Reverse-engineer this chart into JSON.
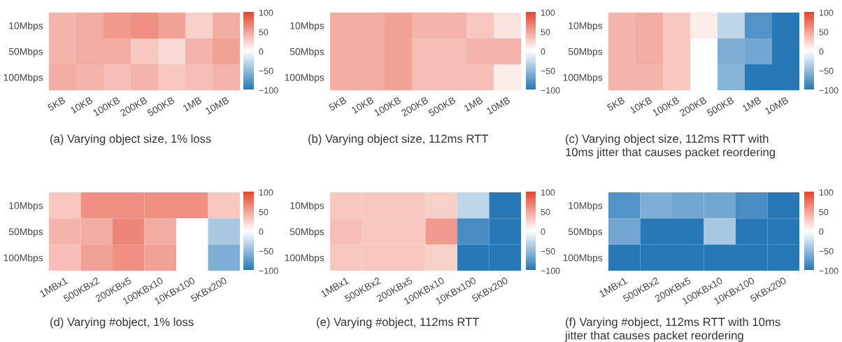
{
  "chart_data": [
    {
      "type": "heatmap",
      "title": "(a) Varying object size, 1% loss",
      "categories": [
        "5KB",
        "10KB",
        "100KB",
        "200KB",
        "500KB",
        "1MB",
        "10MB"
      ],
      "y_categories": [
        "10Mbps",
        "50Mbps",
        "100Mbps"
      ],
      "cells": [
        [
          40,
          45,
          55,
          60,
          50,
          25,
          45
        ],
        [
          40,
          45,
          45,
          30,
          20,
          40,
          50
        ],
        [
          45,
          40,
          35,
          40,
          30,
          35,
          40
        ]
      ],
      "clim": [
        -100,
        100
      ],
      "cticks": [
        -100,
        -50,
        0,
        50,
        100
      ]
    },
    {
      "type": "heatmap",
      "title": "(b) Varying object size, 112ms RTT",
      "categories": [
        "5KB",
        "10KB",
        "100KB",
        "200KB",
        "500KB",
        "1MB",
        "10MB"
      ],
      "y_categories": [
        "10Mbps",
        "50Mbps",
        "100Mbps"
      ],
      "cells": [
        [
          45,
          45,
          50,
          40,
          40,
          30,
          15
        ],
        [
          45,
          45,
          50,
          35,
          35,
          40,
          40
        ],
        [
          45,
          45,
          50,
          35,
          35,
          35,
          10
        ]
      ],
      "clim": [
        -100,
        100
      ],
      "cticks": [
        -100,
        -50,
        0,
        50,
        100
      ]
    },
    {
      "type": "heatmap",
      "title": "(c) Varying object size, 112ms RTT with\n10ms jitter that causes packet reordering",
      "categories": [
        "5KB",
        "10KB",
        "100KB",
        "200KB",
        "500KB",
        "1MB",
        "10MB"
      ],
      "y_categories": [
        "10Mbps",
        "50Mbps",
        "100Mbps"
      ],
      "cells": [
        [
          40,
          45,
          30,
          10,
          -30,
          -80,
          -100
        ],
        [
          40,
          45,
          30,
          0,
          -60,
          -65,
          -100
        ],
        [
          40,
          40,
          30,
          0,
          -55,
          -100,
          -100
        ]
      ],
      "clim": [
        -100,
        100
      ],
      "cticks": [
        -100,
        -50,
        0,
        50,
        100
      ]
    },
    {
      "type": "heatmap",
      "title": "(d) Varying #object, 1% loss",
      "categories": [
        "1MBx1",
        "500KBx2",
        "200KBx5",
        "100KBx10",
        "10KBx100",
        "5KBx200"
      ],
      "y_categories": [
        "10Mbps",
        "50Mbps",
        "100Mbps"
      ],
      "cells": [
        [
          30,
          60,
          60,
          60,
          60,
          30
        ],
        [
          40,
          45,
          65,
          45,
          0,
          -40
        ],
        [
          35,
          50,
          60,
          50,
          0,
          -60
        ]
      ],
      "clim": [
        -100,
        100
      ],
      "cticks": [
        -100,
        -50,
        0,
        50,
        100
      ]
    },
    {
      "type": "heatmap",
      "title": "(e) Varying #object, 112ms RTT",
      "categories": [
        "1MBx1",
        "500KBx2",
        "200KBx5",
        "100KBx10",
        "10KBx100",
        "5KBx200"
      ],
      "y_categories": [
        "10Mbps",
        "50Mbps",
        "100Mbps"
      ],
      "cells": [
        [
          30,
          30,
          30,
          25,
          -30,
          -100
        ],
        [
          35,
          30,
          30,
          55,
          -85,
          -100
        ],
        [
          30,
          30,
          30,
          25,
          -100,
          -100
        ]
      ],
      "clim": [
        -100,
        100
      ],
      "cticks": [
        -100,
        -50,
        0,
        50,
        100
      ]
    },
    {
      "type": "heatmap",
      "title": "(f) Varying #object, 112ms RTT with 10ms\njitter that causes packet reordering",
      "categories": [
        "1MBx1",
        "500KBx2",
        "200KBx5",
        "100KBx10",
        "10KBx100",
        "5KBx200"
      ],
      "y_categories": [
        "10Mbps",
        "50Mbps",
        "100Mbps"
      ],
      "cells": [
        [
          -80,
          -60,
          -65,
          -65,
          -85,
          -100
        ],
        [
          -65,
          -100,
          -100,
          -40,
          -100,
          -100
        ],
        [
          -100,
          -100,
          -100,
          -100,
          -100,
          -100
        ]
      ],
      "clim": [
        -100,
        100
      ],
      "cticks": [
        -100,
        -50,
        0,
        50,
        100
      ]
    }
  ]
}
